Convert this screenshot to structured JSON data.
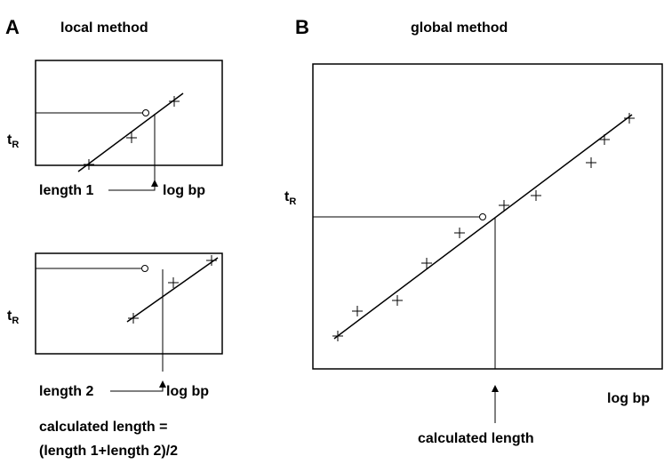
{
  "panel_a": {
    "label": "A",
    "title": "local method",
    "top_plot": {
      "y_label": {
        "main": "t",
        "sub": "R"
      },
      "x_left": "length 1",
      "x_label": "log bp"
    },
    "bottom_plot": {
      "y_label": {
        "main": "t",
        "sub": "R"
      },
      "x_left": "length 2",
      "x_label": "log bp"
    },
    "result": [
      "calculated length =",
      "(length 1+length 2)/2"
    ]
  },
  "panel_b": {
    "label": "B",
    "title": "global method",
    "y_label": {
      "main": "t",
      "sub": "R"
    },
    "x_label": "log bp",
    "result": "calculated length"
  }
}
